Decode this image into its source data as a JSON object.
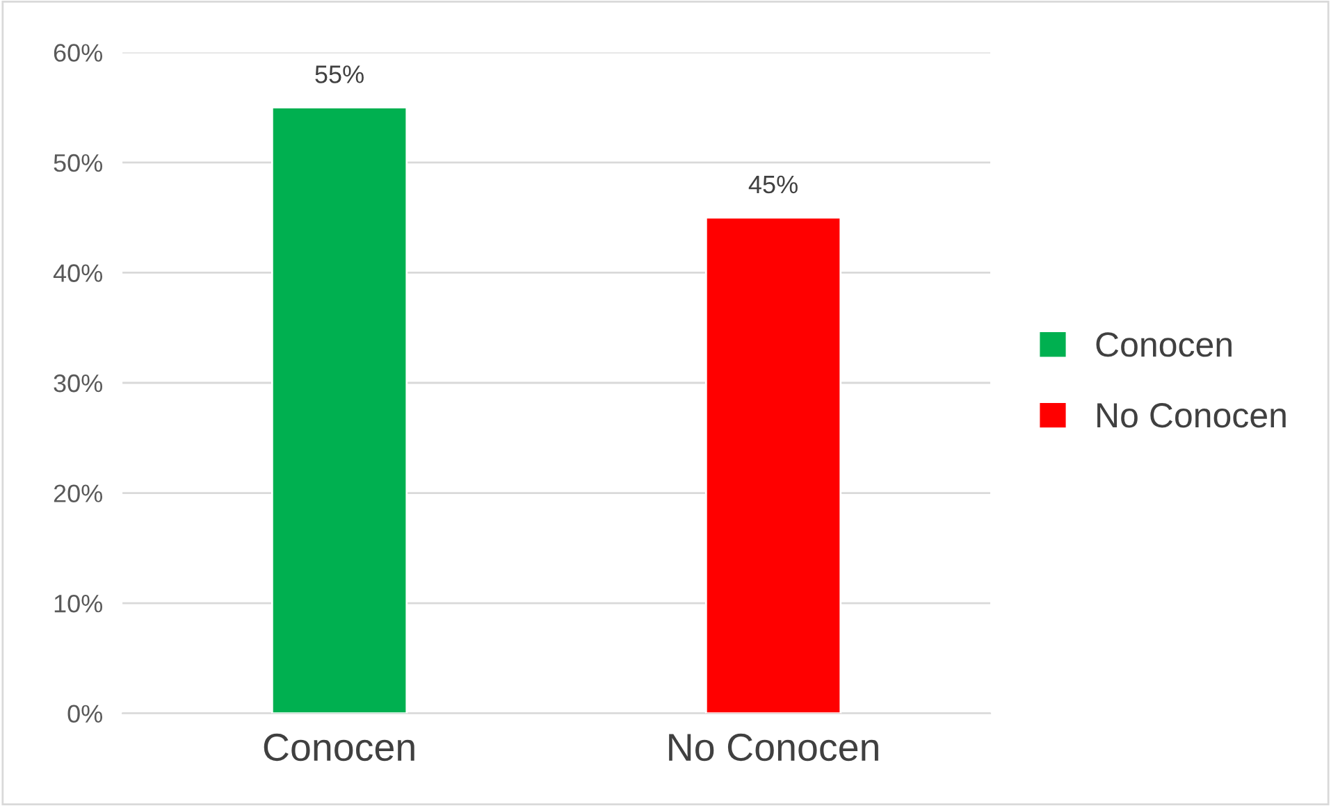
{
  "chart_data": {
    "type": "bar",
    "categories": [
      "Conocen",
      "No Conocen"
    ],
    "series": [
      {
        "name": "Conocen",
        "color": "#00b050",
        "values": [
          55,
          null
        ],
        "value_labels": [
          "55%",
          null
        ]
      },
      {
        "name": "No Conocen",
        "color": "#ff0000",
        "values": [
          null,
          45
        ],
        "value_labels": [
          null,
          "45%"
        ]
      }
    ],
    "ylim": [
      0,
      60
    ],
    "yticks": [
      {
        "value": 0,
        "label": "0%"
      },
      {
        "value": 10,
        "label": "10%"
      },
      {
        "value": 20,
        "label": "20%"
      },
      {
        "value": 30,
        "label": "30%"
      },
      {
        "value": 40,
        "label": "40%"
      },
      {
        "value": 50,
        "label": "50%"
      },
      {
        "value": 60,
        "label": "60%"
      }
    ],
    "grid": "y",
    "legend": "right"
  }
}
